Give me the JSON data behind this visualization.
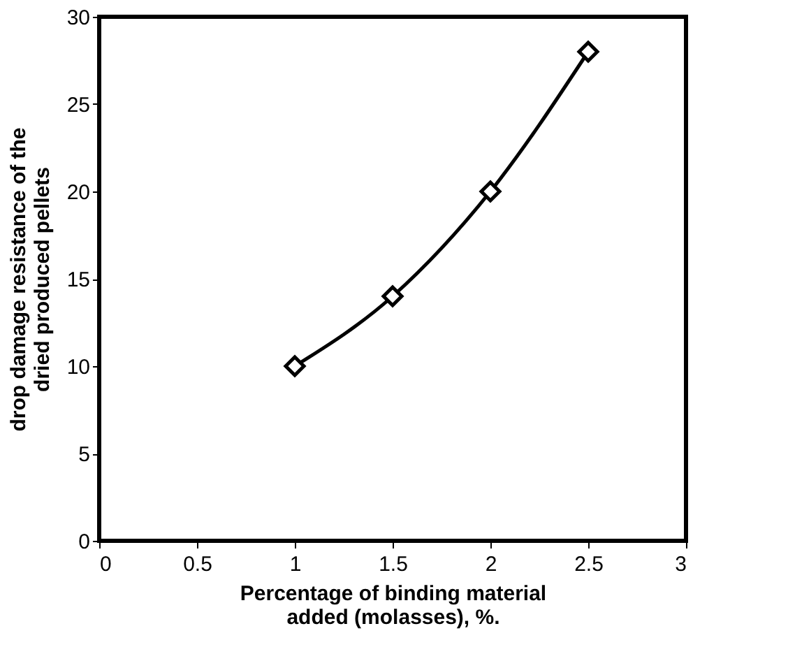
{
  "chart_data": {
    "type": "line",
    "xlabel": "Percentage of binding material\nadded (molasses), %.",
    "ylabel": "drop damage resistance of the\ndried produced pellets",
    "x": [
      1,
      1.5,
      2,
      2.5
    ],
    "series": [
      {
        "color": "#000000",
        "values": [
          10,
          14,
          20,
          28
        ]
      }
    ],
    "xlim": [
      0,
      3
    ],
    "xticks": [
      0,
      0.5,
      1,
      1.5,
      2,
      2.5,
      3
    ],
    "ylim": [
      0,
      30
    ],
    "yticks": [
      0,
      5,
      10,
      15,
      20,
      25,
      30
    ],
    "grid": false,
    "marker": "diamond",
    "line_style": "solid"
  }
}
